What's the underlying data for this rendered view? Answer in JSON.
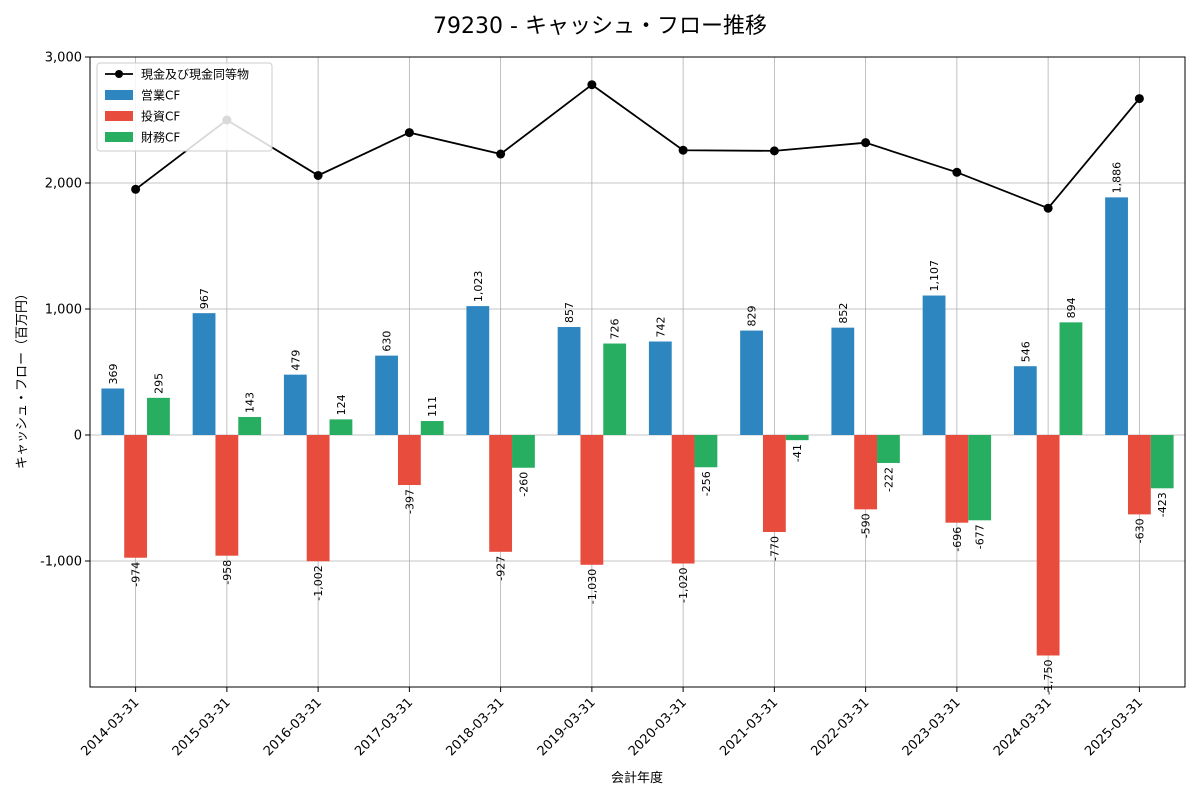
{
  "chart_data": {
    "type": "bar",
    "title": "79230 - キャッシュ・フロー推移",
    "xlabel": "会計年度",
    "ylabel": "キャッシュ・フロー（百万円）",
    "ylim": [
      -2000,
      3000
    ],
    "yticks": [
      -1000,
      0,
      1000,
      2000,
      3000
    ],
    "ytick_labels": [
      "-1,000",
      "0",
      "1,000",
      "2,000",
      "3,000"
    ],
    "grid": true,
    "legend_position": "top-left",
    "categories": [
      "2014-03-31",
      "2015-03-31",
      "2016-03-31",
      "2017-03-31",
      "2018-03-31",
      "2019-03-31",
      "2020-03-31",
      "2021-03-31",
      "2022-03-31",
      "2023-03-31",
      "2024-03-31",
      "2025-03-31"
    ],
    "series": [
      {
        "name": "営業CF",
        "type": "bar",
        "color": "#2e86c1",
        "values": [
          369,
          967,
          479,
          630,
          1023,
          857,
          742,
          829,
          852,
          1107,
          546,
          1886
        ],
        "labels": [
          "369",
          "967",
          "479",
          "630",
          "1,023",
          "857",
          "742",
          "829",
          "852",
          "1,107",
          "546",
          "1,886"
        ]
      },
      {
        "name": "投資CF",
        "type": "bar",
        "color": "#e74c3c",
        "values": [
          -974,
          -958,
          -1002,
          -397,
          -927,
          -1030,
          -1020,
          -770,
          -590,
          -696,
          -1750,
          -630
        ],
        "labels": [
          "-974",
          "-958",
          "-1,002",
          "-397",
          "-927",
          "-1,030",
          "-1,020",
          "-770",
          "-590",
          "-696",
          "-1,750",
          "-630"
        ]
      },
      {
        "name": "財務CF",
        "type": "bar",
        "color": "#27ae60",
        "values": [
          295,
          143,
          124,
          111,
          -260,
          726,
          -256,
          -41,
          -222,
          -677,
          894,
          -423
        ],
        "labels": [
          "295",
          "143",
          "124",
          "111",
          "-260",
          "726",
          "-256",
          "-41",
          "-222",
          "-677",
          "894",
          "-423"
        ]
      },
      {
        "name": "現金及び現金同等物",
        "type": "line",
        "color": "#000000",
        "values": [
          1950,
          2500,
          2060,
          2400,
          2230,
          2780,
          2260,
          2255,
          2320,
          2085,
          1800,
          2670
        ]
      }
    ]
  }
}
